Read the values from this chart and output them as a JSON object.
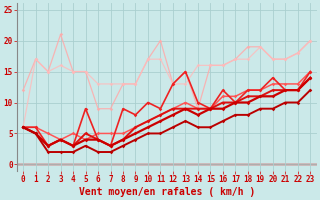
{
  "background_color": "#cbe9e9",
  "grid_color": "#aacfcf",
  "xlabel": "Vent moyen/en rafales ( km/h )",
  "xlabel_color": "#cc0000",
  "xlabel_fontsize": 7.0,
  "tick_color": "#cc0000",
  "tick_fontsize": 5.5,
  "ylim": [
    -1,
    26
  ],
  "xlim": [
    -0.5,
    23.5
  ],
  "yticks": [
    0,
    5,
    10,
    15,
    20,
    25
  ],
  "xticks": [
    0,
    1,
    2,
    3,
    4,
    5,
    6,
    7,
    8,
    9,
    10,
    11,
    12,
    13,
    14,
    15,
    16,
    17,
    18,
    19,
    20,
    21,
    22,
    23
  ],
  "series": [
    {
      "x": [
        0,
        1,
        2,
        3,
        4,
        5,
        6,
        7,
        8,
        9,
        10,
        11,
        12,
        13,
        14,
        15,
        16,
        17,
        18,
        19,
        20,
        21,
        22,
        23
      ],
      "y": [
        12,
        17,
        15,
        21,
        15,
        15,
        9,
        9,
        13,
        13,
        17,
        20,
        13,
        15,
        9,
        16,
        16,
        17,
        19,
        19,
        17,
        17,
        18,
        20
      ],
      "color": "#ffaaaa",
      "lw": 0.9,
      "marker": "D",
      "ms": 1.8,
      "alpha": 0.85
    },
    {
      "x": [
        0,
        1,
        2,
        3,
        4,
        5,
        6,
        7,
        8,
        9,
        10,
        11,
        12,
        13,
        14,
        15,
        16,
        17,
        18,
        19,
        20,
        21,
        22,
        23
      ],
      "y": [
        6,
        17,
        15,
        16,
        15,
        15,
        13,
        13,
        13,
        13,
        17,
        17,
        13,
        13,
        16,
        16,
        16,
        17,
        17,
        19,
        17,
        17,
        18,
        20
      ],
      "color": "#ffbbbb",
      "lw": 0.9,
      "marker": "D",
      "ms": 1.8,
      "alpha": 0.8
    },
    {
      "x": [
        0,
        1,
        2,
        3,
        4,
        5,
        6,
        7,
        8,
        9,
        10,
        11,
        12,
        13,
        14,
        15,
        16,
        17,
        18,
        19,
        20,
        21,
        22,
        23
      ],
      "y": [
        6,
        6,
        5,
        4,
        5,
        4,
        5,
        5,
        5,
        6,
        7,
        8,
        9,
        10,
        9,
        9,
        11,
        11,
        12,
        12,
        13,
        13,
        13,
        15
      ],
      "color": "#ff5555",
      "lw": 1.1,
      "marker": "D",
      "ms": 1.8,
      "alpha": 1.0
    },
    {
      "x": [
        0,
        1,
        2,
        3,
        4,
        5,
        6,
        7,
        8,
        9,
        10,
        11,
        12,
        13,
        14,
        15,
        16,
        17,
        18,
        19,
        20,
        21,
        22,
        23
      ],
      "y": [
        6,
        6,
        3,
        4,
        3,
        9,
        4,
        3,
        9,
        8,
        10,
        9,
        13,
        15,
        10,
        9,
        12,
        10,
        12,
        12,
        14,
        12,
        12,
        15
      ],
      "color": "#ee2222",
      "lw": 1.2,
      "marker": "D",
      "ms": 1.8,
      "alpha": 1.0
    },
    {
      "x": [
        0,
        1,
        2,
        3,
        4,
        5,
        6,
        7,
        8,
        9,
        10,
        11,
        12,
        13,
        14,
        15,
        16,
        17,
        18,
        19,
        20,
        21,
        22,
        23
      ],
      "y": [
        6,
        5,
        3,
        4,
        3,
        5,
        4,
        3,
        4,
        6,
        7,
        8,
        9,
        9,
        9,
        9,
        10,
        10,
        11,
        11,
        12,
        12,
        12,
        14
      ],
      "color": "#dd1111",
      "lw": 1.4,
      "marker": "D",
      "ms": 1.8,
      "alpha": 1.0
    },
    {
      "x": [
        0,
        1,
        2,
        3,
        4,
        5,
        6,
        7,
        8,
        9,
        10,
        11,
        12,
        13,
        14,
        15,
        16,
        17,
        18,
        19,
        20,
        21,
        22,
        23
      ],
      "y": [
        6,
        5,
        3,
        4,
        3,
        4,
        4,
        3,
        4,
        5,
        6,
        7,
        8,
        9,
        8,
        9,
        9,
        10,
        10,
        11,
        11,
        12,
        12,
        14
      ],
      "color": "#cc0000",
      "lw": 1.6,
      "marker": "D",
      "ms": 1.8,
      "alpha": 1.0
    },
    {
      "x": [
        0,
        1,
        2,
        3,
        4,
        5,
        6,
        7,
        8,
        9,
        10,
        11,
        12,
        13,
        14,
        15,
        16,
        17,
        18,
        19,
        20,
        21,
        22,
        23
      ],
      "y": [
        6,
        5,
        2,
        2,
        2,
        3,
        2,
        2,
        3,
        4,
        5,
        5,
        6,
        7,
        6,
        6,
        7,
        8,
        8,
        9,
        9,
        10,
        10,
        12
      ],
      "color": "#bb0000",
      "lw": 1.4,
      "marker": "D",
      "ms": 1.8,
      "alpha": 1.0
    }
  ]
}
